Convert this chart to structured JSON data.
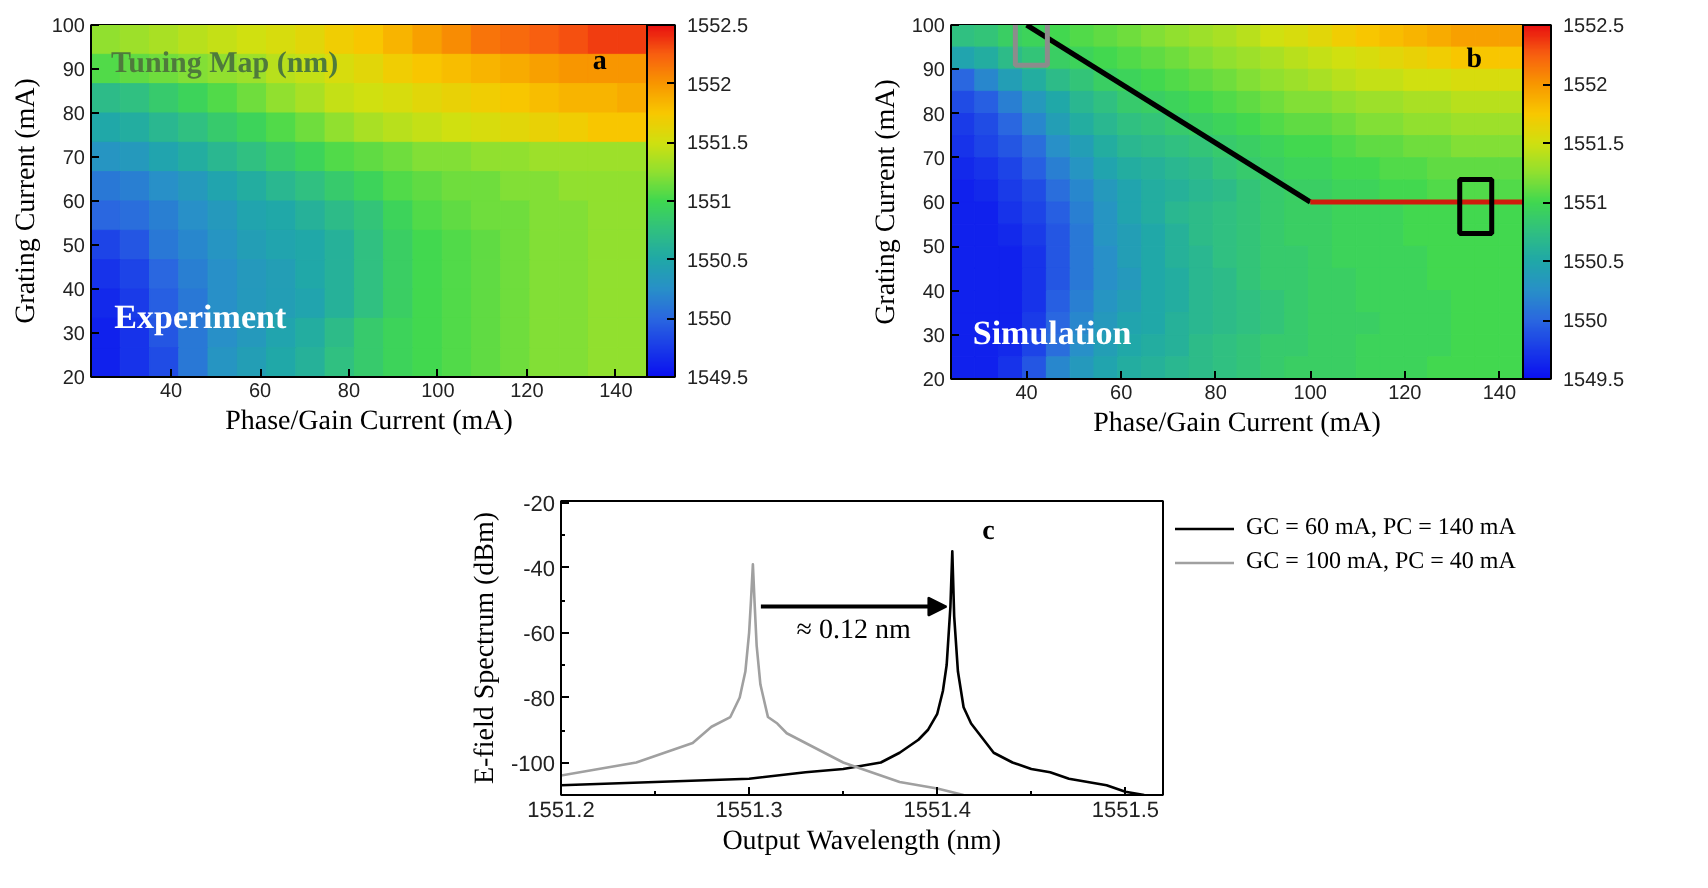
{
  "chart_data": [
    {
      "type": "heatmap",
      "xlabel": "Phase/Gain Current (mA)",
      "ylabel": "Grating Current (mA)",
      "xlim": [
        22,
        147
      ],
      "ylim": [
        20,
        100
      ],
      "xticks": [
        40,
        60,
        80,
        100,
        120,
        140
      ],
      "yticks": [
        20,
        30,
        40,
        50,
        60,
        70,
        80,
        90,
        100
      ],
      "clim": [
        1549.5,
        1552.5
      ],
      "cticks": [
        1549.5,
        1550,
        1550.5,
        1551,
        1551.5,
        1552,
        1552.5
      ],
      "cells": [
        [
          1551.25,
          1551.3,
          1551.35,
          1551.4,
          1551.45,
          1551.5,
          1551.55,
          1551.6,
          1551.7,
          1551.75,
          1551.85,
          1551.95,
          1552.05,
          1552.15,
          1552.2,
          1552.25,
          1552.3,
          1552.35,
          1552.35
        ],
        [
          1551.05,
          1551.1,
          1551.15,
          1551.2,
          1551.25,
          1551.3,
          1551.4,
          1551.45,
          1551.55,
          1551.6,
          1551.7,
          1551.75,
          1551.8,
          1551.85,
          1551.9,
          1551.95,
          1552.0,
          1552.0,
          1552.0
        ],
        [
          1550.7,
          1550.75,
          1550.85,
          1550.95,
          1551.05,
          1551.15,
          1551.25,
          1551.35,
          1551.45,
          1551.5,
          1551.55,
          1551.6,
          1551.65,
          1551.7,
          1551.75,
          1551.8,
          1551.85,
          1551.85,
          1551.9
        ],
        [
          1550.5,
          1550.55,
          1550.65,
          1550.75,
          1550.85,
          1550.95,
          1551.05,
          1551.15,
          1551.25,
          1551.35,
          1551.4,
          1551.45,
          1551.5,
          1551.55,
          1551.6,
          1551.65,
          1551.7,
          1551.75,
          1551.75
        ],
        [
          1550.3,
          1550.35,
          1550.45,
          1550.55,
          1550.65,
          1550.75,
          1550.85,
          1550.95,
          1551.05,
          1551.1,
          1551.15,
          1551.2,
          1551.2,
          1551.25,
          1551.25,
          1551.3,
          1551.3,
          1551.3,
          1551.3
        ],
        [
          1550.1,
          1550.15,
          1550.25,
          1550.35,
          1550.45,
          1550.55,
          1550.65,
          1550.75,
          1550.85,
          1550.95,
          1551.05,
          1551.1,
          1551.15,
          1551.15,
          1551.2,
          1551.2,
          1551.25,
          1551.25,
          1551.25
        ],
        [
          1550.0,
          1550.05,
          1550.15,
          1550.25,
          1550.35,
          1550.45,
          1550.5,
          1550.6,
          1550.7,
          1550.8,
          1550.95,
          1551.05,
          1551.1,
          1551.15,
          1551.15,
          1551.2,
          1551.2,
          1551.25,
          1551.25
        ],
        [
          1549.8,
          1549.9,
          1550.1,
          1550.2,
          1550.3,
          1550.4,
          1550.45,
          1550.5,
          1550.6,
          1550.75,
          1550.9,
          1551.0,
          1551.05,
          1551.1,
          1551.15,
          1551.2,
          1551.2,
          1551.25,
          1551.25
        ],
        [
          1549.7,
          1549.8,
          1550.0,
          1550.15,
          1550.25,
          1550.35,
          1550.4,
          1550.5,
          1550.6,
          1550.75,
          1550.9,
          1551.0,
          1551.05,
          1551.1,
          1551.15,
          1551.2,
          1551.2,
          1551.25,
          1551.25
        ],
        [
          1549.65,
          1549.75,
          1549.95,
          1550.1,
          1550.25,
          1550.35,
          1550.4,
          1550.45,
          1550.6,
          1550.75,
          1550.9,
          1551.0,
          1551.05,
          1551.1,
          1551.15,
          1551.2,
          1551.2,
          1551.25,
          1551.25
        ],
        [
          1549.6,
          1549.7,
          1549.9,
          1550.1,
          1550.25,
          1550.35,
          1550.45,
          1550.55,
          1550.7,
          1550.85,
          1550.95,
          1551.0,
          1551.05,
          1551.1,
          1551.15,
          1551.2,
          1551.2,
          1551.25,
          1551.25
        ],
        [
          1549.6,
          1549.7,
          1549.85,
          1550.1,
          1550.3,
          1550.4,
          1550.5,
          1550.6,
          1550.75,
          1550.85,
          1550.95,
          1551.0,
          1551.05,
          1551.1,
          1551.15,
          1551.2,
          1551.2,
          1551.25,
          1551.25
        ]
      ],
      "annotations": [
        "Tuning Map (nm)",
        "a",
        "Experiment"
      ]
    },
    {
      "type": "heatmap",
      "xlabel": "Phase/Gain Current (mA)",
      "ylabel": "Grating Current (mA)",
      "xlim": [
        24,
        145
      ],
      "ylim": [
        20,
        100
      ],
      "xticks": [
        40,
        60,
        80,
        100,
        120,
        140
      ],
      "yticks": [
        20,
        30,
        40,
        50,
        60,
        70,
        80,
        90,
        100
      ],
      "clim": [
        1549.5,
        1552.5
      ],
      "cticks": [
        1549.5,
        1550,
        1550.5,
        1551,
        1551.5,
        1552,
        1552.5
      ],
      "cells": [
        [
          1550.75,
          1550.8,
          1550.9,
          1550.95,
          1551.0,
          1551.05,
          1551.1,
          1551.15,
          1551.2,
          1551.25,
          1551.3,
          1551.35,
          1551.4,
          1551.5,
          1551.55,
          1551.6,
          1551.7,
          1551.75,
          1551.8,
          1551.85,
          1551.9,
          1551.95,
          1551.95,
          1551.95
        ],
        [
          1550.45,
          1550.55,
          1550.7,
          1550.8,
          1550.9,
          1550.95,
          1551.0,
          1551.05,
          1551.1,
          1551.15,
          1551.2,
          1551.25,
          1551.3,
          1551.35,
          1551.4,
          1551.45,
          1551.5,
          1551.55,
          1551.6,
          1551.65,
          1551.7,
          1551.75,
          1551.75,
          1551.75
        ],
        [
          1550.0,
          1550.2,
          1550.4,
          1550.55,
          1550.7,
          1550.8,
          1550.9,
          1550.95,
          1551.0,
          1551.05,
          1551.1,
          1551.15,
          1551.2,
          1551.25,
          1551.3,
          1551.35,
          1551.4,
          1551.45,
          1551.45,
          1551.5,
          1551.5,
          1551.55,
          1551.55,
          1551.55
        ],
        [
          1549.85,
          1549.95,
          1550.15,
          1550.35,
          1550.5,
          1550.65,
          1550.75,
          1550.85,
          1550.9,
          1550.95,
          1551.0,
          1551.05,
          1551.1,
          1551.15,
          1551.2,
          1551.2,
          1551.25,
          1551.3,
          1551.3,
          1551.35,
          1551.35,
          1551.4,
          1551.4,
          1551.4
        ],
        [
          1549.75,
          1549.85,
          1550.0,
          1550.2,
          1550.4,
          1550.55,
          1550.65,
          1550.75,
          1550.8,
          1550.85,
          1550.9,
          1550.95,
          1551.0,
          1551.05,
          1551.1,
          1551.1,
          1551.15,
          1551.2,
          1551.2,
          1551.25,
          1551.25,
          1551.3,
          1551.3,
          1551.3
        ],
        [
          1549.7,
          1549.8,
          1549.9,
          1550.05,
          1550.25,
          1550.4,
          1550.55,
          1550.65,
          1550.7,
          1550.75,
          1550.8,
          1550.85,
          1550.9,
          1550.95,
          1551.0,
          1551.0,
          1551.05,
          1551.1,
          1551.1,
          1551.15,
          1551.15,
          1551.2,
          1551.2,
          1551.2
        ],
        [
          1549.65,
          1549.7,
          1549.8,
          1549.95,
          1550.15,
          1550.3,
          1550.45,
          1550.55,
          1550.6,
          1550.65,
          1550.7,
          1550.8,
          1550.85,
          1550.9,
          1550.95,
          1550.95,
          1551.0,
          1551.0,
          1551.05,
          1551.05,
          1551.1,
          1551.1,
          1551.1,
          1551.1
        ],
        [
          1549.6,
          1549.65,
          1549.75,
          1549.85,
          1550.05,
          1550.2,
          1550.35,
          1550.45,
          1550.55,
          1550.6,
          1550.65,
          1550.7,
          1550.8,
          1550.85,
          1550.9,
          1550.9,
          1550.95,
          1550.95,
          1551.0,
          1551.0,
          1551.05,
          1551.05,
          1551.05,
          1551.05
        ],
        [
          1549.6,
          1549.6,
          1549.7,
          1549.8,
          1549.95,
          1550.15,
          1550.3,
          1550.45,
          1550.55,
          1550.65,
          1550.7,
          1550.75,
          1550.8,
          1550.85,
          1550.9,
          1550.9,
          1550.95,
          1550.95,
          1550.95,
          1551.0,
          1551.0,
          1551.0,
          1551.0,
          1551.0
        ],
        [
          1549.6,
          1549.6,
          1549.65,
          1549.75,
          1549.9,
          1550.1,
          1550.3,
          1550.4,
          1550.5,
          1550.6,
          1550.7,
          1550.75,
          1550.8,
          1550.85,
          1550.9,
          1550.9,
          1550.95,
          1550.95,
          1550.95,
          1551.0,
          1551.0,
          1551.0,
          1551.0,
          1551.0
        ],
        [
          1549.6,
          1549.6,
          1549.6,
          1549.7,
          1549.9,
          1550.1,
          1550.25,
          1550.4,
          1550.5,
          1550.6,
          1550.65,
          1550.75,
          1550.8,
          1550.85,
          1550.85,
          1550.9,
          1550.95,
          1550.95,
          1550.95,
          1550.95,
          1551.0,
          1551.0,
          1551.0,
          1551.0
        ],
        [
          1549.6,
          1549.6,
          1549.6,
          1549.7,
          1549.9,
          1550.1,
          1550.25,
          1550.35,
          1550.5,
          1550.55,
          1550.65,
          1550.7,
          1550.8,
          1550.85,
          1550.85,
          1550.9,
          1550.9,
          1550.95,
          1550.95,
          1550.95,
          1551.0,
          1551.0,
          1551.0,
          1551.0
        ],
        [
          1549.6,
          1549.6,
          1549.6,
          1549.7,
          1549.95,
          1550.15,
          1550.3,
          1550.4,
          1550.5,
          1550.55,
          1550.65,
          1550.7,
          1550.75,
          1550.8,
          1550.85,
          1550.9,
          1550.9,
          1550.95,
          1550.95,
          1550.95,
          1550.95,
          1551.0,
          1551.0,
          1551.0
        ],
        [
          1549.6,
          1549.6,
          1549.6,
          1549.75,
          1550.0,
          1550.2,
          1550.35,
          1550.45,
          1550.5,
          1550.6,
          1550.65,
          1550.7,
          1550.75,
          1550.8,
          1550.85,
          1550.9,
          1550.9,
          1550.9,
          1550.95,
          1550.95,
          1550.95,
          1551.0,
          1551.0,
          1551.0
        ],
        [
          1549.6,
          1549.6,
          1549.65,
          1549.8,
          1550.05,
          1550.25,
          1550.4,
          1550.5,
          1550.55,
          1550.6,
          1550.7,
          1550.75,
          1550.8,
          1550.85,
          1550.85,
          1550.9,
          1550.9,
          1550.95,
          1550.95,
          1550.95,
          1550.95,
          1551.0,
          1551.0,
          1551.0
        ],
        [
          1549.6,
          1549.6,
          1549.7,
          1549.9,
          1550.2,
          1550.35,
          1550.45,
          1550.55,
          1550.6,
          1550.65,
          1550.7,
          1550.75,
          1550.8,
          1550.85,
          1550.9,
          1550.9,
          1550.9,
          1550.95,
          1550.95,
          1550.95,
          1551.0,
          1551.0,
          1551.0,
          1551.0
        ]
      ],
      "series": [
        {
          "type": "line",
          "color": "#000000",
          "x": [
            40,
            100
          ],
          "values": [
            100,
            60
          ]
        },
        {
          "type": "line",
          "color": "#d01c0c",
          "x": [
            100,
            145
          ],
          "values": [
            60,
            60
          ]
        },
        {
          "type": "scatter",
          "marker": "square",
          "color": "#8c8c8c",
          "x": [
            41
          ],
          "values": [
            97
          ]
        },
        {
          "type": "scatter",
          "marker": "square",
          "color": "#000000",
          "x": [
            135
          ],
          "values": [
            59
          ]
        }
      ],
      "annotations": [
        "b",
        "Simulation"
      ]
    },
    {
      "type": "line",
      "xlabel": "Output Wavelength (nm)",
      "ylabel": "E-field Spectrum (dBm)",
      "xlim": [
        1551.2,
        1551.52
      ],
      "ylim": [
        -110,
        -19.5
      ],
      "xticks": [
        1551.2,
        {
          "value": 1551.25,
          "label": null
        },
        1551.3,
        {
          "value": 1551.35,
          "label": null
        },
        1551.4,
        {
          "value": 1551.45,
          "label": null
        },
        1551.5
      ],
      "yticks": [
        -20,
        {
          "value": -30,
          "label": null
        },
        -40,
        {
          "value": -50,
          "label": null
        },
        -60,
        {
          "value": -70,
          "label": null
        },
        -80,
        {
          "value": -90,
          "label": null
        },
        -100
      ],
      "legend": "top right",
      "series": [
        {
          "name": "GC = 60 mA, PC = 140 mA",
          "color": "#000000",
          "x": [
            1551.2,
            1551.25,
            1551.3,
            1551.33,
            1551.35,
            1551.36,
            1551.37,
            1551.38,
            1551.39,
            1551.395,
            1551.4,
            1551.403,
            1551.405,
            1551.407,
            1551.408,
            1551.409,
            1551.411,
            1551.414,
            1551.418,
            1551.422,
            1551.43,
            1551.44,
            1551.45,
            1551.46,
            1551.47,
            1551.48,
            1551.49,
            1551.5,
            1551.51
          ],
          "values": [
            -107,
            -106,
            -105,
            -103,
            -102,
            -101,
            -100,
            -97,
            -93,
            -90,
            -85,
            -78,
            -70,
            -52,
            -35,
            -55,
            -72,
            -83,
            -88,
            -91,
            -97,
            -100,
            -102,
            -103,
            -105,
            -106,
            -107,
            -109,
            -110
          ]
        },
        {
          "name": "GC = 100 mA, PC = 40 mA",
          "color": "#a0a0a0",
          "x": [
            1551.2,
            1551.22,
            1551.24,
            1551.26,
            1551.27,
            1551.28,
            1551.29,
            1551.295,
            1551.298,
            1551.3,
            1551.301,
            1551.302,
            1551.303,
            1551.304,
            1551.306,
            1551.31,
            1551.315,
            1551.32,
            1551.33,
            1551.34,
            1551.35,
            1551.36,
            1551.37,
            1551.38,
            1551.39,
            1551.4,
            1551.414
          ],
          "values": [
            -104,
            -102,
            -100,
            -96,
            -94,
            -89,
            -86,
            -80,
            -72,
            -60,
            -50,
            -39,
            -52,
            -64,
            -76,
            -86,
            -88,
            -91,
            -94,
            -97,
            -100,
            -102,
            -104,
            -106,
            -107,
            -108,
            -110
          ]
        }
      ],
      "annotations": [
        {
          "text": "≈ 0.12 nm",
          "x": 1551.407,
          "y": -52
        },
        "c"
      ]
    }
  ]
}
